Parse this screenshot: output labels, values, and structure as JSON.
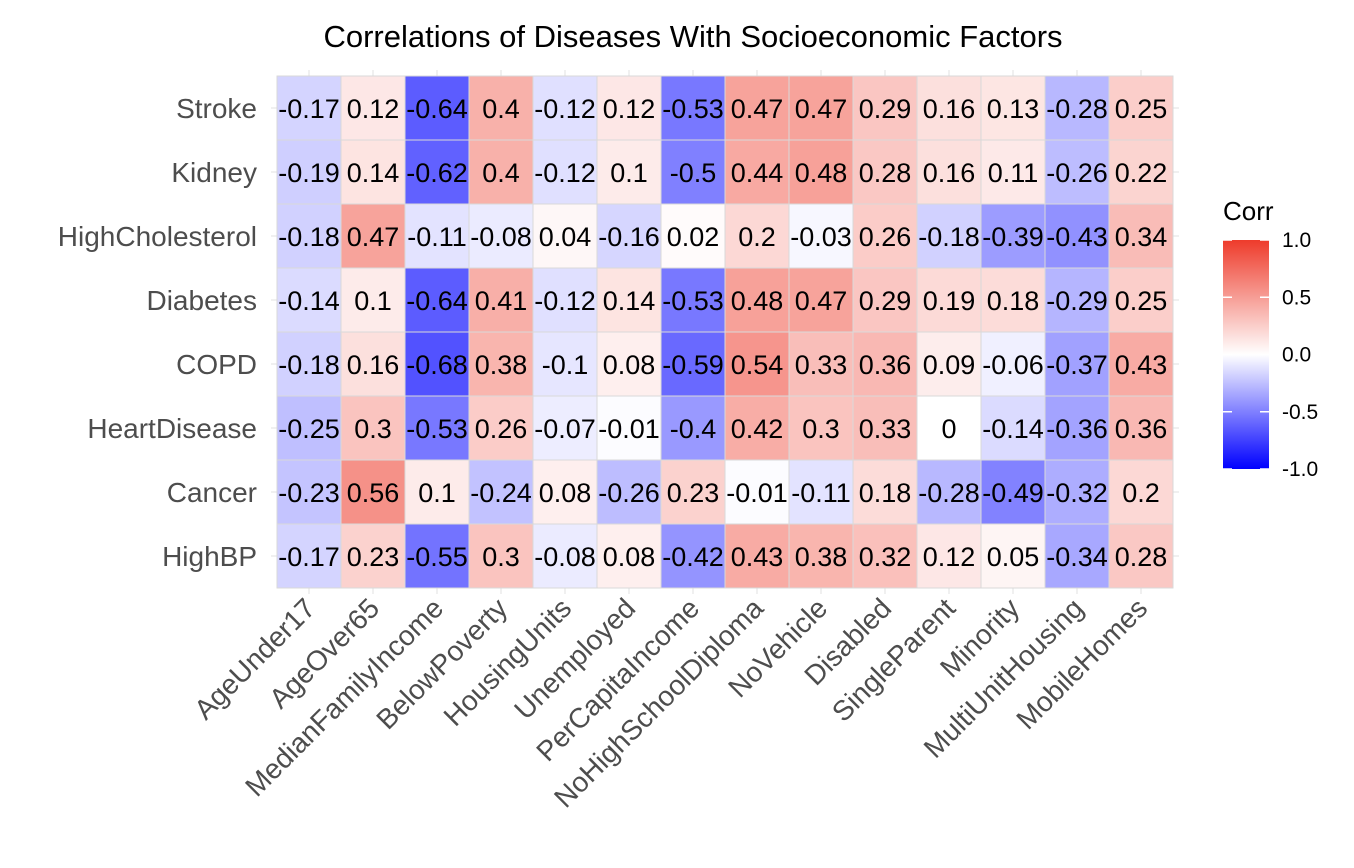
{
  "chart_data": {
    "type": "heatmap",
    "title": "Correlations of Diseases With Socioeconomic Factors",
    "xlabel": "",
    "ylabel": "",
    "x_categories": [
      "AgeUnder17",
      "AgeOver65",
      "MedianFamilyIncome",
      "BelowPoverty",
      "HousingUnits",
      "Unemployed",
      "PerCapitaIncome",
      "NoHighSchoolDiploma",
      "NoVehicle",
      "Disabled",
      "SingleParent",
      "Minority",
      "MultiUnitHousing",
      "MobileHomes"
    ],
    "y_categories": [
      "Stroke",
      "Kidney",
      "HighCholesterol",
      "Diabetes",
      "COPD",
      "HeartDisease",
      "Cancer",
      "HighBP"
    ],
    "values": [
      [
        -0.17,
        0.12,
        -0.64,
        0.4,
        -0.12,
        0.12,
        -0.53,
        0.47,
        0.47,
        0.29,
        0.16,
        0.13,
        -0.28,
        0.25
      ],
      [
        -0.19,
        0.14,
        -0.62,
        0.4,
        -0.12,
        0.1,
        -0.5,
        0.44,
        0.48,
        0.28,
        0.16,
        0.11,
        -0.26,
        0.22
      ],
      [
        -0.18,
        0.47,
        -0.11,
        -0.08,
        0.04,
        -0.16,
        0.02,
        0.2,
        -0.03,
        0.26,
        -0.18,
        -0.39,
        -0.43,
        0.34
      ],
      [
        -0.14,
        0.1,
        -0.64,
        0.41,
        -0.12,
        0.14,
        -0.53,
        0.48,
        0.47,
        0.29,
        0.19,
        0.18,
        -0.29,
        0.25
      ],
      [
        -0.18,
        0.16,
        -0.68,
        0.38,
        -0.1,
        0.08,
        -0.59,
        0.54,
        0.33,
        0.36,
        0.09,
        -0.06,
        -0.37,
        0.43
      ],
      [
        -0.25,
        0.3,
        -0.53,
        0.26,
        -0.07,
        -0.01,
        -0.4,
        0.42,
        0.3,
        0.33,
        0,
        -0.14,
        -0.36,
        0.36
      ],
      [
        -0.23,
        0.56,
        0.1,
        -0.24,
        0.08,
        -0.26,
        0.23,
        -0.01,
        -0.11,
        0.18,
        -0.28,
        -0.49,
        -0.32,
        0.2
      ],
      [
        -0.17,
        0.23,
        -0.55,
        0.3,
        -0.08,
        0.08,
        -0.42,
        0.43,
        0.38,
        0.32,
        0.12,
        0.05,
        -0.34,
        0.28
      ]
    ],
    "color_scale": {
      "low": "#0000ff",
      "mid": "#ffffff",
      "high": "#ee3b2b",
      "limits": [
        -1,
        1
      ]
    },
    "legend": {
      "title": "Corr",
      "placement": "right",
      "ticks": [
        "1.0",
        "0.5",
        "0.0",
        "-0.5",
        "-1.0"
      ],
      "tick_values": [
        1,
        0.5,
        0,
        -0.5,
        -1
      ]
    },
    "grid": true
  }
}
